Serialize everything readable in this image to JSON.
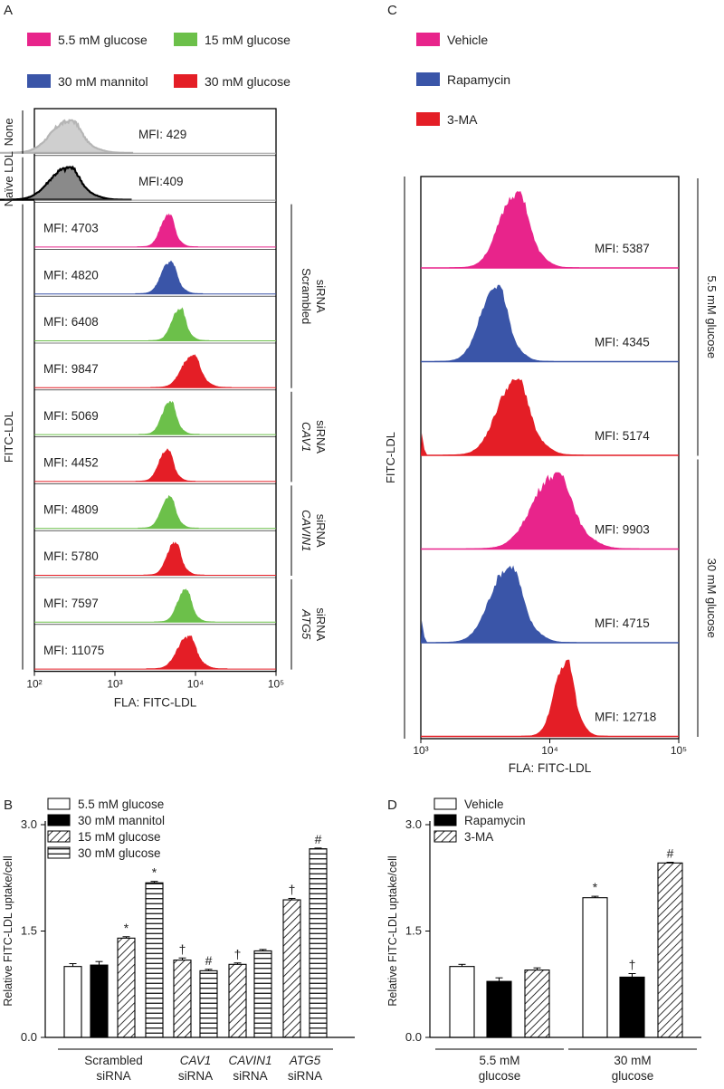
{
  "colors": {
    "pink": "#e8248b",
    "green": "#6cc04a",
    "blue": "#3a55a8",
    "red": "#e41e26",
    "gray_light": "#cfcfcf",
    "gray_light_line": "#b5b5b5",
    "gray_dark": "#8a8a8a",
    "gray_dark_line": "#000000"
  },
  "panels": {
    "A": "A",
    "B": "B",
    "C": "C",
    "D": "D"
  },
  "chart_data": [
    {
      "panel": "A",
      "type": "histogram",
      "legend": [
        {
          "label": "5.5 mM glucose",
          "color": "pink"
        },
        {
          "label": "15 mM glucose",
          "color": "green"
        },
        {
          "label": "30 mM mannitol",
          "color": "blue"
        },
        {
          "label": "30 mM glucose",
          "color": "red"
        }
      ],
      "xlabel": "FLA: FITC-LDL",
      "ylabel": "FITC-LDL",
      "x_scale": "log",
      "xlim": [
        100,
        100000
      ],
      "x_ticks": [
        {
          "value": 100,
          "label": "10²"
        },
        {
          "value": 1000,
          "label": "10³"
        },
        {
          "value": 10000,
          "label": "10⁴"
        },
        {
          "value": 100000,
          "label": "10⁵"
        }
      ],
      "group_labels": [
        {
          "label": "None",
          "rows": [
            0,
            0
          ]
        },
        {
          "label": "Naïve LDL",
          "rows": [
            1,
            1
          ]
        }
      ],
      "right_groups": [
        {
          "line1": "Scrambled",
          "line2": "siRNA",
          "italic": false,
          "rows": [
            2,
            5
          ]
        },
        {
          "line1": "CAV1",
          "line2": "siRNA",
          "italic": true,
          "rows": [
            6,
            7
          ]
        },
        {
          "line1": "CAVIN1",
          "line2": "siRNA",
          "italic": true,
          "rows": [
            8,
            9
          ]
        },
        {
          "line1": "ATG5",
          "line2": "siRNA",
          "italic": true,
          "rows": [
            10,
            11
          ]
        }
      ],
      "rows": [
        {
          "mfi_label": "MFI: 429",
          "mfi": 429,
          "peak": 250,
          "width": 0.2,
          "color": "gray_light",
          "label_side": "right"
        },
        {
          "mfi_label": "MFI:409",
          "mfi": 409,
          "peak": 240,
          "width": 0.2,
          "color": "gray_dark",
          "label_side": "right"
        },
        {
          "mfi_label": "MFI: 4703",
          "mfi": 4703,
          "peak": 4500,
          "width": 0.09,
          "color": "pink",
          "label_side": "left"
        },
        {
          "mfi_label": "MFI: 4820",
          "mfi": 4820,
          "peak": 4700,
          "width": 0.1,
          "color": "blue",
          "label_side": "left"
        },
        {
          "mfi_label": "MFI: 6408",
          "mfi": 6408,
          "peak": 6200,
          "width": 0.09,
          "color": "green",
          "label_side": "left"
        },
        {
          "mfi_label": "MFI: 9847",
          "mfi": 9847,
          "peak": 8800,
          "width": 0.12,
          "color": "red",
          "label_side": "left"
        },
        {
          "mfi_label": "MFI: 5069",
          "mfi": 5069,
          "peak": 4700,
          "width": 0.09,
          "color": "green",
          "label_side": "left"
        },
        {
          "mfi_label": "MFI: 4452",
          "mfi": 4452,
          "peak": 4300,
          "width": 0.09,
          "color": "red",
          "label_side": "left"
        },
        {
          "mfi_label": "MFI: 4809",
          "mfi": 4809,
          "peak": 4600,
          "width": 0.09,
          "color": "green",
          "label_side": "left"
        },
        {
          "mfi_label": "MFI: 5780",
          "mfi": 5780,
          "peak": 5400,
          "width": 0.09,
          "color": "red",
          "label_side": "left"
        },
        {
          "mfi_label": "MFI: 7597",
          "mfi": 7597,
          "peak": 7300,
          "width": 0.09,
          "color": "green",
          "label_side": "left"
        },
        {
          "mfi_label": "MFI: 11075",
          "mfi": 11075,
          "peak": 7800,
          "width": 0.12,
          "color": "red",
          "label_side": "left"
        }
      ]
    },
    {
      "panel": "C",
      "type": "histogram",
      "legend": [
        {
          "label": "Vehicle",
          "color": "pink"
        },
        {
          "label": "Rapamycin",
          "color": "blue"
        },
        {
          "label": "3-MA",
          "color": "red"
        }
      ],
      "xlabel": "FLA: FITC-LDL",
      "ylabel": "FITC-LDL",
      "x_scale": "log",
      "xlim": [
        1000,
        100000
      ],
      "x_ticks": [
        {
          "value": 1000,
          "label": "10³"
        },
        {
          "value": 10000,
          "label": "10⁴"
        },
        {
          "value": 100000,
          "label": "10⁵"
        }
      ],
      "right_groups": [
        {
          "label": "5.5 mM glucose",
          "rows": [
            0,
            2
          ]
        },
        {
          "label": "30 mM glucose",
          "rows": [
            3,
            5
          ]
        }
      ],
      "rows": [
        {
          "mfi_label": "MFI: 5387",
          "mfi": 5387,
          "peak": 5300,
          "width": 0.12,
          "color": "pink",
          "edge_spike": false
        },
        {
          "mfi_label": "MFI: 4345",
          "mfi": 4345,
          "peak": 3700,
          "width": 0.11,
          "color": "blue",
          "edge_spike": false
        },
        {
          "mfi_label": "MFI: 5174",
          "mfi": 5174,
          "peak": 5200,
          "width": 0.13,
          "color": "red",
          "edge_spike": true
        },
        {
          "mfi_label": "MFI: 9903",
          "mfi": 9903,
          "peak": 10500,
          "width": 0.16,
          "color": "pink",
          "edge_spike": false
        },
        {
          "mfi_label": "MFI: 4715",
          "mfi": 4715,
          "peak": 4600,
          "width": 0.13,
          "color": "blue",
          "edge_spike": true
        },
        {
          "mfi_label": "MFI: 12718",
          "mfi": 12718,
          "peak": 13000,
          "width": 0.08,
          "color": "red",
          "edge_spike": false
        }
      ]
    },
    {
      "panel": "B",
      "type": "bar",
      "ylabel": "Relative FITC-LDL uptake/cell",
      "ylim": [
        0,
        3.0
      ],
      "y_ticks": [
        "0.0",
        "1.5",
        "3.0"
      ],
      "legend": [
        {
          "label": "5.5 mM glucose",
          "pattern": "white"
        },
        {
          "label": "30 mM mannitol",
          "pattern": "black"
        },
        {
          "label": "15 mM glucose",
          "pattern": "diag"
        },
        {
          "label": "30 mM glucose",
          "pattern": "horiz"
        }
      ],
      "groups": [
        {
          "line1": "Scrambled",
          "line2": "siRNA",
          "italic": false,
          "bars": [
            {
              "pattern": "white",
              "value": 1.0,
              "err": 0.04,
              "mark": ""
            },
            {
              "pattern": "black",
              "value": 1.02,
              "err": 0.05,
              "mark": ""
            },
            {
              "pattern": "diag",
              "value": 1.4,
              "err": 0.02,
              "mark": "*"
            },
            {
              "pattern": "horiz",
              "value": 2.18,
              "err": 0.02,
              "mark": "*"
            }
          ]
        },
        {
          "line1": "CAV1",
          "line2": "siRNA",
          "italic": true,
          "bars": [
            {
              "pattern": "diag",
              "value": 1.09,
              "err": 0.03,
              "mark": "†"
            },
            {
              "pattern": "horiz",
              "value": 0.94,
              "err": 0.02,
              "mark": "#"
            }
          ]
        },
        {
          "line1": "CAVIN1",
          "line2": "siRNA",
          "italic": true,
          "bars": [
            {
              "pattern": "diag",
              "value": 1.03,
              "err": 0.02,
              "mark": "†"
            },
            {
              "pattern": "horiz",
              "value": 1.22,
              "err": 0.02,
              "mark": ""
            }
          ]
        },
        {
          "line1": "ATG5",
          "line2": "siRNA",
          "italic": true,
          "bars": [
            {
              "pattern": "diag",
              "value": 1.94,
              "err": 0.02,
              "mark": "†"
            },
            {
              "pattern": "horiz",
              "value": 2.66,
              "err": 0.01,
              "mark": "#"
            }
          ]
        }
      ]
    },
    {
      "panel": "D",
      "type": "bar",
      "ylabel": "Relative FITC-LDL uptake/cell",
      "ylim": [
        0,
        3.0
      ],
      "y_ticks": [
        "0.0",
        "1.5",
        "3.0"
      ],
      "legend": [
        {
          "label": "Vehicle",
          "pattern": "white"
        },
        {
          "label": "Rapamycin",
          "pattern": "black"
        },
        {
          "label": "3-MA",
          "pattern": "diag"
        }
      ],
      "groups": [
        {
          "line1": "5.5 mM",
          "line2": "glucose",
          "italic": false,
          "bars": [
            {
              "pattern": "white",
              "value": 1.0,
              "err": 0.03,
              "mark": ""
            },
            {
              "pattern": "black",
              "value": 0.79,
              "err": 0.05,
              "mark": ""
            },
            {
              "pattern": "diag",
              "value": 0.95,
              "err": 0.03,
              "mark": ""
            }
          ]
        },
        {
          "line1": "30 mM",
          "line2": "glucose",
          "italic": false,
          "bars": [
            {
              "pattern": "white",
              "value": 1.97,
              "err": 0.02,
              "mark": "*"
            },
            {
              "pattern": "black",
              "value": 0.85,
              "err": 0.05,
              "mark": "†"
            },
            {
              "pattern": "diag",
              "value": 2.46,
              "err": 0.01,
              "mark": "#"
            }
          ]
        }
      ]
    }
  ]
}
